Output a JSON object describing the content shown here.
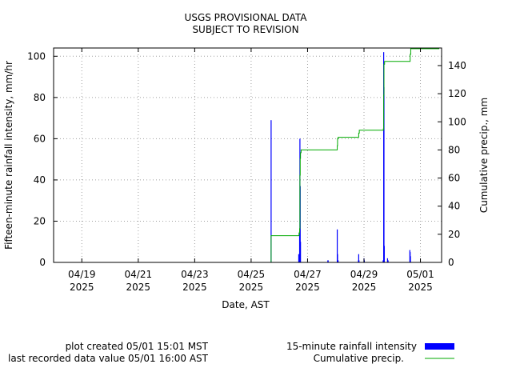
{
  "chart_data": {
    "type": "bar+line",
    "title": [
      "USGS PROVISIONAL DATA",
      "SUBJECT TO REVISION"
    ],
    "xlabel": "Date, AST",
    "ylabel_left": "Fifteen-minute rainfall intensity, mm/hr",
    "ylabel_right": "Cumulative precip., mm",
    "x_range": [
      "2025-04-18 00:00",
      "2025-05-01 18:00"
    ],
    "ylim_left": [
      0,
      104
    ],
    "ylim_right": [
      0,
      152.5
    ],
    "x_ticks": [
      {
        "t": "2025-04-19 00:00",
        "line1": "04/19",
        "line2": "2025"
      },
      {
        "t": "2025-04-21 00:00",
        "line1": "04/21",
        "line2": "2025"
      },
      {
        "t": "2025-04-23 00:00",
        "line1": "04/23",
        "line2": "2025"
      },
      {
        "t": "2025-04-25 00:00",
        "line1": "04/25",
        "line2": "2025"
      },
      {
        "t": "2025-04-27 00:00",
        "line1": "04/27",
        "line2": "2025"
      },
      {
        "t": "2025-04-29 00:00",
        "line1": "04/29",
        "line2": "2025"
      },
      {
        "t": "2025-05-01 00:00",
        "line1": "05/01",
        "line2": "2025"
      }
    ],
    "y_ticks_left": [
      0,
      20,
      40,
      60,
      80,
      100
    ],
    "y_ticks_right": [
      0,
      20,
      40,
      60,
      80,
      100,
      120,
      140
    ],
    "grid": true,
    "series": [
      {
        "name": "15-minute rainfall intensity",
        "kind": "bar",
        "color": "#0000ff",
        "points": [
          [
            "2025-04-25 17:00",
            69
          ],
          [
            "2025-04-26 16:30",
            4
          ],
          [
            "2025-04-26 17:15",
            15
          ],
          [
            "2025-04-26 17:30",
            60
          ],
          [
            "2025-04-26 17:45",
            37
          ],
          [
            "2025-04-26 18:00",
            10
          ],
          [
            "2025-04-27 17:15",
            1
          ],
          [
            "2025-04-27 17:30",
            1
          ],
          [
            "2025-04-28 01:15",
            16
          ],
          [
            "2025-04-28 01:30",
            4
          ],
          [
            "2025-04-28 02:00",
            1
          ],
          [
            "2025-04-28 19:15",
            1
          ],
          [
            "2025-04-28 19:30",
            4
          ],
          [
            "2025-04-28 19:45",
            1
          ],
          [
            "2025-04-29 00:00",
            2
          ],
          [
            "2025-04-29 00:15",
            1
          ],
          [
            "2025-04-29 16:15",
            1
          ],
          [
            "2025-04-29 16:45",
            102
          ],
          [
            "2025-04-29 17:00",
            85
          ],
          [
            "2025-04-29 17:15",
            8
          ],
          [
            "2025-04-29 20:00",
            2
          ],
          [
            "2025-04-29 20:30",
            1
          ],
          [
            "2025-04-30 15:00",
            6
          ],
          [
            "2025-04-30 15:15",
            5
          ],
          [
            "2025-04-30 15:30",
            3
          ]
        ]
      },
      {
        "name": "Cumulative precip.",
        "kind": "step",
        "color": "#00aa00",
        "points": [
          [
            "2025-04-18 00:00",
            0
          ],
          [
            "2025-04-25 16:45",
            0
          ],
          [
            "2025-04-25 17:00",
            19
          ],
          [
            "2025-04-26 16:30",
            19
          ],
          [
            "2025-04-26 16:45",
            21
          ],
          [
            "2025-04-26 17:15",
            24
          ],
          [
            "2025-04-26 17:30",
            62
          ],
          [
            "2025-04-26 17:45",
            74
          ],
          [
            "2025-04-26 18:00",
            78
          ],
          [
            "2025-04-26 18:30",
            80
          ],
          [
            "2025-04-28 00:45",
            80
          ],
          [
            "2025-04-28 01:15",
            83
          ],
          [
            "2025-04-28 01:30",
            88
          ],
          [
            "2025-04-28 02:00",
            89
          ],
          [
            "2025-04-28 19:00",
            89
          ],
          [
            "2025-04-28 19:30",
            92
          ],
          [
            "2025-04-28 20:00",
            94
          ],
          [
            "2025-04-29 16:15",
            94
          ],
          [
            "2025-04-29 16:30",
            95
          ],
          [
            "2025-04-29 16:45",
            119
          ],
          [
            "2025-04-29 17:00",
            141
          ],
          [
            "2025-04-29 17:30",
            143
          ],
          [
            "2025-04-30 14:45",
            143
          ],
          [
            "2025-04-30 15:15",
            148
          ],
          [
            "2025-04-30 15:45",
            152
          ],
          [
            "2025-05-01 16:00",
            152
          ]
        ]
      }
    ],
    "legend": {
      "placement": "bottom-right",
      "entries": [
        "15-minute rainfall intensity",
        "Cumulative precip."
      ]
    },
    "footer_left": [
      "plot created 05/01 15:01 MST",
      "last recorded data value 05/01 16:00 AST"
    ]
  }
}
